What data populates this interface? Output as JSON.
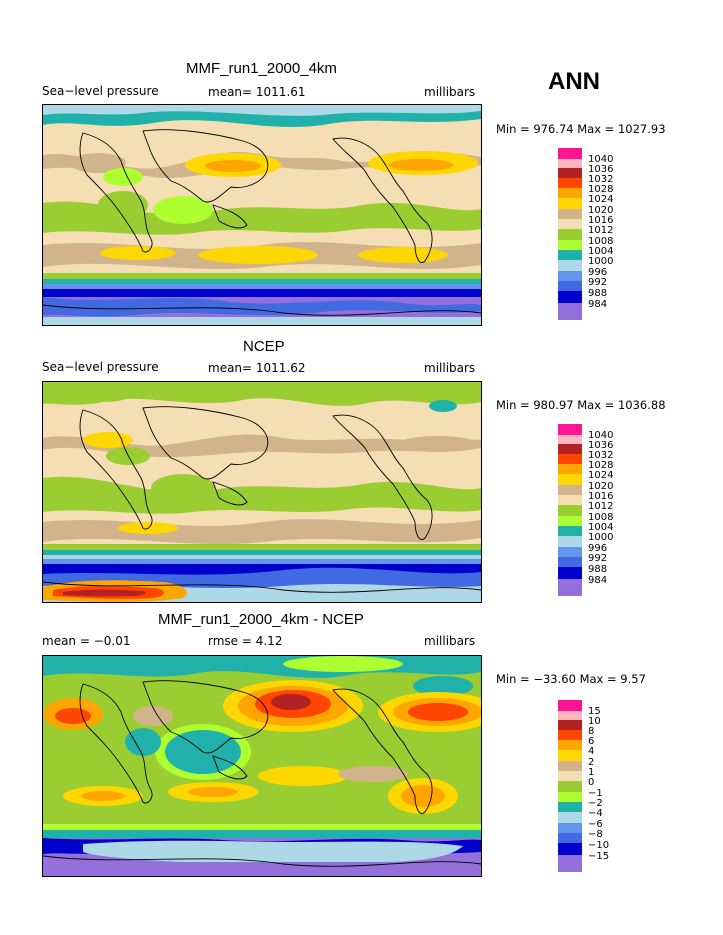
{
  "season": "ANN",
  "panels": [
    {
      "title": "MMF_run1_2000_4km",
      "left_label": "Sea−level pressure",
      "center_label": "mean=  1011.61",
      "units": "millibars",
      "minmax": "Min = 976.74 Max = 1027.93",
      "colorbar": {
        "levels": [
          "1040",
          "1036",
          "1032",
          "1028",
          "1024",
          "1020",
          "1016",
          "1012",
          "1008",
          "1004",
          "1000",
          "996",
          "992",
          "988",
          "984"
        ],
        "colors": [
          "#ff1493",
          "#ffb6c1",
          "#b22222",
          "#ff4500",
          "#ffa500",
          "#ffd700",
          "#d2b48c",
          "#f5deb3",
          "#9acd32",
          "#adff2f",
          "#20b2aa",
          "#add8e6",
          "#6495ed",
          "#4169e1",
          "#0000cd",
          "#9370db"
        ]
      }
    },
    {
      "title": "NCEP",
      "left_label": "Sea−level pressure",
      "center_label": "mean=  1011.62",
      "units": "millibars",
      "minmax": "Min = 980.97 Max = 1036.88",
      "colorbar": {
        "levels": [
          "1040",
          "1036",
          "1032",
          "1028",
          "1024",
          "1020",
          "1016",
          "1012",
          "1008",
          "1004",
          "1000",
          "996",
          "992",
          "988",
          "984"
        ],
        "colors": [
          "#ff1493",
          "#ffb6c1",
          "#b22222",
          "#ff4500",
          "#ffa500",
          "#ffd700",
          "#d2b48c",
          "#f5deb3",
          "#9acd32",
          "#adff2f",
          "#20b2aa",
          "#add8e6",
          "#6495ed",
          "#4169e1",
          "#0000cd",
          "#9370db"
        ]
      }
    },
    {
      "title": "MMF_run1_2000_4km - NCEP",
      "left_label": "mean =   −0.01",
      "center_label": "rmse =    4.12",
      "units": "millibars",
      "minmax": "Min = −33.60 Max =    9.57",
      "colorbar": {
        "levels": [
          "15",
          "10",
          "8",
          "6",
          "4",
          "2",
          "1",
          "0",
          "−1",
          "−2",
          "−4",
          "−6",
          "−8",
          "−10",
          "−15"
        ],
        "colors": [
          "#ff1493",
          "#ffb6c1",
          "#b22222",
          "#ff4500",
          "#ffa500",
          "#ffd700",
          "#d2b48c",
          "#f5deb3",
          "#9acd32",
          "#adff2f",
          "#20b2aa",
          "#add8e6",
          "#6495ed",
          "#4169e1",
          "#0000cd",
          "#9370db"
        ]
      }
    }
  ]
}
